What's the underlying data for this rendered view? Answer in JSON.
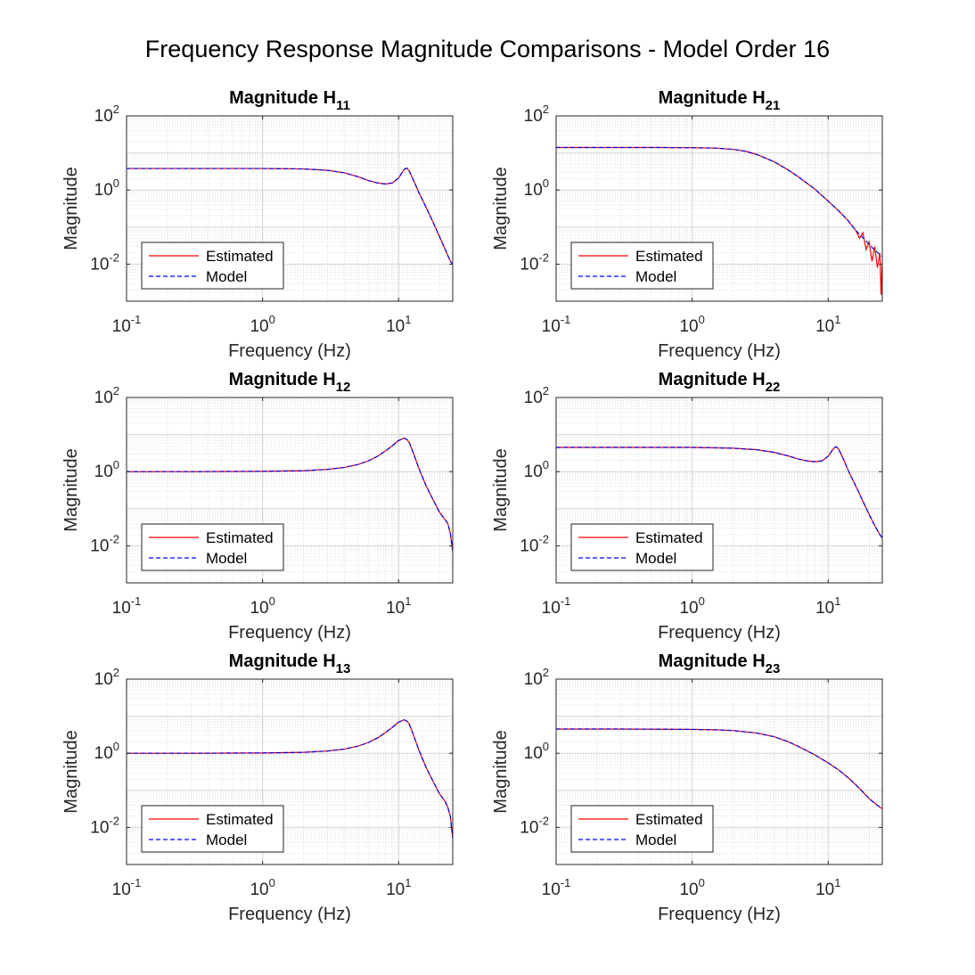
{
  "figure": {
    "title": "Frequency Response Magnitude Comparisons - Model Order 16"
  },
  "colors": {
    "estimated": "#ff0000",
    "model": "#0000ff",
    "axis": "#262626",
    "grid": "#dedede"
  },
  "chart_data": [
    {
      "type": "line",
      "title": "Magnitude H",
      "title_sub": "11",
      "xlabel": "Frequency (Hz)",
      "ylabel": "Magnitude",
      "xscale": "log",
      "yscale": "log",
      "xlim": [
        0.1,
        25
      ],
      "ylim": [
        0.001,
        100
      ],
      "xticks": [
        0.1,
        1,
        10
      ],
      "yticks": [
        0.01,
        1,
        100
      ],
      "grid": true,
      "legend": "bottom-left",
      "series": [
        {
          "name": "Estimated",
          "style": "solid",
          "x": [
            0.1,
            0.3,
            1,
            2,
            3,
            4,
            5,
            6,
            7,
            8,
            9,
            10,
            10.5,
            11,
            11.5,
            12,
            13,
            14,
            16,
            18,
            20,
            22,
            24,
            25
          ],
          "y": [
            3.8,
            3.8,
            3.8,
            3.7,
            3.4,
            2.9,
            2.3,
            1.8,
            1.55,
            1.45,
            1.55,
            2.1,
            2.8,
            3.6,
            3.9,
            3.2,
            1.7,
            0.9,
            0.33,
            0.13,
            0.055,
            0.025,
            0.012,
            0.01
          ]
        },
        {
          "name": "Model",
          "style": "dashed",
          "x": [
            0.1,
            0.3,
            1,
            2,
            3,
            4,
            5,
            6,
            7,
            8,
            9,
            10,
            10.5,
            11,
            11.5,
            12,
            13,
            14,
            16,
            18,
            20,
            22,
            24,
            25
          ],
          "y": [
            3.8,
            3.8,
            3.8,
            3.7,
            3.4,
            2.9,
            2.3,
            1.8,
            1.55,
            1.45,
            1.55,
            2.1,
            2.8,
            3.6,
            3.9,
            3.2,
            1.7,
            0.9,
            0.33,
            0.13,
            0.055,
            0.025,
            0.012,
            0.01
          ]
        }
      ]
    },
    {
      "type": "line",
      "title": "Magnitude H",
      "title_sub": "21",
      "xlabel": "Frequency (Hz)",
      "ylabel": "Magnitude",
      "xscale": "log",
      "yscale": "log",
      "xlim": [
        0.1,
        25
      ],
      "ylim": [
        0.001,
        100
      ],
      "xticks": [
        0.1,
        1,
        10
      ],
      "yticks": [
        0.01,
        1,
        100
      ],
      "grid": true,
      "legend": "bottom-left",
      "series": [
        {
          "name": "Estimated",
          "style": "solid",
          "x": [
            0.1,
            0.3,
            0.6,
            1,
            1.5,
            2,
            2.5,
            3,
            4,
            5,
            6,
            8,
            10,
            12,
            14,
            16,
            17,
            18,
            19,
            20,
            21,
            22,
            23,
            24,
            24.5,
            25
          ],
          "y": [
            14,
            14,
            14,
            13.8,
            13.5,
            12.5,
            11,
            9,
            5.8,
            3.6,
            2.3,
            1.05,
            0.5,
            0.27,
            0.15,
            0.08,
            0.05,
            0.07,
            0.025,
            0.04,
            0.012,
            0.03,
            0.008,
            0.02,
            0.0015,
            0.012
          ]
        },
        {
          "name": "Model",
          "style": "dashed",
          "x": [
            0.1,
            0.3,
            0.6,
            1,
            1.5,
            2,
            2.5,
            3,
            4,
            5,
            6,
            8,
            10,
            12,
            14,
            16,
            18,
            20,
            22,
            24,
            25
          ],
          "y": [
            14,
            14,
            14,
            13.8,
            13.5,
            12.5,
            11,
            9,
            5.8,
            3.6,
            2.3,
            1.05,
            0.5,
            0.27,
            0.15,
            0.08,
            0.052,
            0.034,
            0.024,
            0.018,
            0.016
          ]
        }
      ]
    },
    {
      "type": "line",
      "title": "Magnitude H",
      "title_sub": "12",
      "xlabel": "Frequency (Hz)",
      "ylabel": "Magnitude",
      "xscale": "log",
      "yscale": "log",
      "xlim": [
        0.1,
        25
      ],
      "ylim": [
        0.001,
        100
      ],
      "xticks": [
        0.1,
        1,
        10
      ],
      "yticks": [
        0.01,
        1,
        100
      ],
      "grid": true,
      "legend": "bottom-left",
      "series": [
        {
          "name": "Estimated",
          "style": "solid",
          "x": [
            0.1,
            0.3,
            1,
            2,
            3,
            4,
            5,
            6,
            7,
            8,
            9,
            10,
            11,
            11.5,
            12,
            13,
            14,
            15,
            16,
            18,
            20,
            22,
            23,
            24,
            25
          ],
          "y": [
            1.0,
            1.0,
            1.02,
            1.06,
            1.15,
            1.3,
            1.55,
            1.95,
            2.6,
            3.6,
            5.0,
            6.9,
            8.0,
            7.4,
            6.0,
            2.8,
            1.3,
            0.7,
            0.4,
            0.17,
            0.08,
            0.05,
            0.04,
            0.022,
            0.007
          ]
        },
        {
          "name": "Model",
          "style": "dashed",
          "x": [
            0.1,
            0.3,
            1,
            2,
            3,
            4,
            5,
            6,
            7,
            8,
            9,
            10,
            11,
            11.5,
            12,
            13,
            14,
            15,
            16,
            18,
            20,
            22,
            23,
            24,
            25
          ],
          "y": [
            1.0,
            1.0,
            1.02,
            1.06,
            1.15,
            1.3,
            1.55,
            1.95,
            2.6,
            3.6,
            5.0,
            6.9,
            8.0,
            7.4,
            6.0,
            2.8,
            1.3,
            0.7,
            0.4,
            0.17,
            0.08,
            0.05,
            0.04,
            0.022,
            0.007
          ]
        }
      ]
    },
    {
      "type": "line",
      "title": "Magnitude H",
      "title_sub": "22",
      "xlabel": "Frequency (Hz)",
      "ylabel": "Magnitude",
      "xscale": "log",
      "yscale": "log",
      "xlim": [
        0.1,
        25
      ],
      "ylim": [
        0.001,
        100
      ],
      "xticks": [
        0.1,
        1,
        10
      ],
      "yticks": [
        0.01,
        1,
        100
      ],
      "grid": true,
      "legend": "bottom-left",
      "series": [
        {
          "name": "Estimated",
          "style": "solid",
          "x": [
            0.1,
            0.3,
            1,
            2,
            3,
            4,
            5,
            6,
            7,
            8,
            9,
            10,
            10.5,
            11,
            11.5,
            12,
            13,
            14,
            16,
            18,
            20,
            22,
            24,
            25
          ],
          "y": [
            4.5,
            4.5,
            4.5,
            4.3,
            3.9,
            3.3,
            2.7,
            2.2,
            1.95,
            1.85,
            1.95,
            2.6,
            3.4,
            4.3,
            4.7,
            3.9,
            2.1,
            1.1,
            0.4,
            0.16,
            0.07,
            0.035,
            0.02,
            0.016
          ]
        },
        {
          "name": "Model",
          "style": "dashed",
          "x": [
            0.1,
            0.3,
            1,
            2,
            3,
            4,
            5,
            6,
            7,
            8,
            9,
            10,
            10.5,
            11,
            11.5,
            12,
            13,
            14,
            16,
            18,
            20,
            22,
            24,
            25
          ],
          "y": [
            4.5,
            4.5,
            4.5,
            4.3,
            3.9,
            3.3,
            2.7,
            2.2,
            1.95,
            1.85,
            1.95,
            2.6,
            3.4,
            4.3,
            4.7,
            3.9,
            2.1,
            1.1,
            0.4,
            0.16,
            0.07,
            0.035,
            0.02,
            0.016
          ]
        }
      ]
    },
    {
      "type": "line",
      "title": "Magnitude H",
      "title_sub": "13",
      "xlabel": "Frequency (Hz)",
      "ylabel": "Magnitude",
      "xscale": "log",
      "yscale": "log",
      "xlim": [
        0.1,
        25
      ],
      "ylim": [
        0.001,
        100
      ],
      "xticks": [
        0.1,
        1,
        10
      ],
      "yticks": [
        0.01,
        1,
        100
      ],
      "grid": true,
      "legend": "bottom-left",
      "series": [
        {
          "name": "Estimated",
          "style": "solid",
          "x": [
            0.1,
            0.3,
            1,
            2,
            3,
            4,
            5,
            6,
            7,
            8,
            9,
            10,
            11,
            11.5,
            12,
            13,
            14,
            15,
            16,
            18,
            20,
            22,
            23,
            24,
            25
          ],
          "y": [
            1.0,
            1.0,
            1.02,
            1.06,
            1.15,
            1.3,
            1.55,
            1.95,
            2.6,
            3.6,
            5.0,
            6.9,
            8.0,
            7.4,
            6.0,
            2.8,
            1.3,
            0.7,
            0.4,
            0.17,
            0.08,
            0.05,
            0.035,
            0.02,
            0.005
          ]
        },
        {
          "name": "Model",
          "style": "dashed",
          "x": [
            0.1,
            0.3,
            1,
            2,
            3,
            4,
            5,
            6,
            7,
            8,
            9,
            10,
            11,
            11.5,
            12,
            13,
            14,
            15,
            16,
            18,
            20,
            22,
            23,
            24,
            25
          ],
          "y": [
            1.0,
            1.0,
            1.02,
            1.06,
            1.15,
            1.3,
            1.55,
            1.95,
            2.6,
            3.6,
            5.0,
            6.9,
            8.0,
            7.4,
            6.0,
            2.8,
            1.3,
            0.7,
            0.4,
            0.17,
            0.08,
            0.05,
            0.035,
            0.02,
            0.005
          ]
        }
      ]
    },
    {
      "type": "line",
      "title": "Magnitude H",
      "title_sub": "23",
      "xlabel": "Frequency (Hz)",
      "ylabel": "Magnitude",
      "xscale": "log",
      "yscale": "log",
      "xlim": [
        0.1,
        25
      ],
      "ylim": [
        0.001,
        100
      ],
      "xticks": [
        0.1,
        1,
        10
      ],
      "yticks": [
        0.01,
        1,
        100
      ],
      "grid": true,
      "legend": "bottom-left",
      "series": [
        {
          "name": "Estimated",
          "style": "solid",
          "x": [
            0.1,
            0.3,
            0.6,
            1,
            1.5,
            2,
            3,
            4,
            5,
            6,
            8,
            10,
            12,
            14,
            16,
            18,
            20,
            22,
            24,
            25
          ],
          "y": [
            4.5,
            4.5,
            4.45,
            4.4,
            4.3,
            4.1,
            3.5,
            2.8,
            2.1,
            1.55,
            0.9,
            0.55,
            0.35,
            0.22,
            0.14,
            0.09,
            0.06,
            0.045,
            0.035,
            0.032
          ]
        },
        {
          "name": "Model",
          "style": "dashed",
          "x": [
            0.1,
            0.3,
            0.6,
            1,
            1.5,
            2,
            3,
            4,
            5,
            6,
            8,
            10,
            12,
            14,
            16,
            18,
            20,
            22,
            24,
            25
          ],
          "y": [
            4.5,
            4.5,
            4.45,
            4.4,
            4.3,
            4.1,
            3.5,
            2.8,
            2.1,
            1.55,
            0.9,
            0.55,
            0.35,
            0.22,
            0.14,
            0.09,
            0.06,
            0.045,
            0.035,
            0.032
          ]
        }
      ]
    }
  ]
}
